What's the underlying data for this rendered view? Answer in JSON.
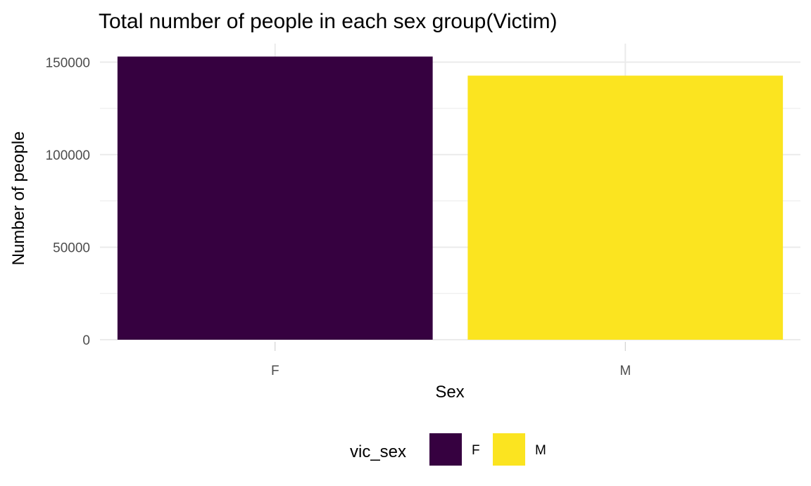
{
  "chart_data": {
    "type": "bar",
    "title": "Total number of people in each sex group(Victim)",
    "xlabel": "Sex",
    "ylabel": "Number of people",
    "categories": [
      "F",
      "M"
    ],
    "values": [
      153000,
      142700
    ],
    "colors": [
      "#360140",
      "#FBE420"
    ],
    "ylim": [
      0,
      160000
    ],
    "yticks": [
      0,
      50000,
      100000,
      150000
    ],
    "ytick_labels": [
      "0",
      "50000",
      "100000",
      "150000"
    ],
    "grid": true,
    "legend": {
      "title": "vic_sex",
      "position": "bottom",
      "entries": [
        "F",
        "M"
      ]
    }
  }
}
